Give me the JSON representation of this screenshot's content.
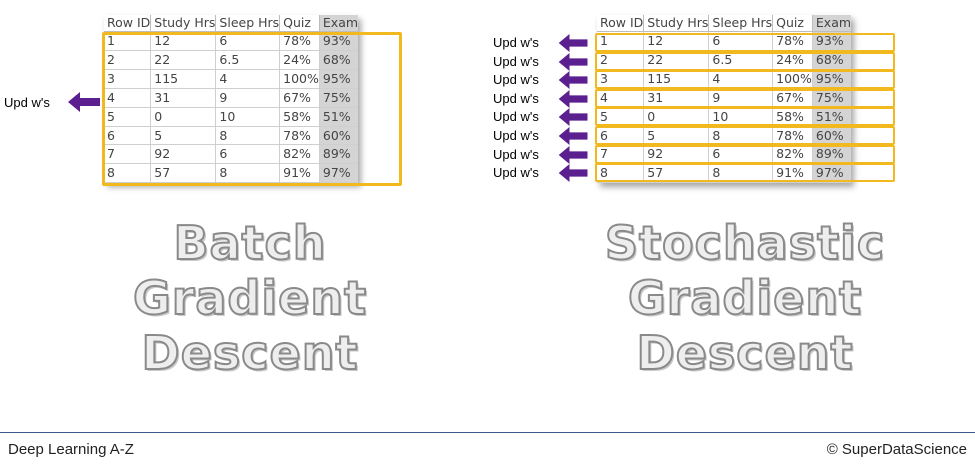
{
  "columns": [
    "Row ID",
    "Study Hrs",
    "Sleep Hrs",
    "Quiz",
    "Exam"
  ],
  "rows": [
    [
      "1",
      "12",
      "6",
      "78%",
      "93%"
    ],
    [
      "2",
      "22",
      "6.5",
      "24%",
      "68%"
    ],
    [
      "3",
      "115",
      "4",
      "100%",
      "95%"
    ],
    [
      "4",
      "31",
      "9",
      "67%",
      "75%"
    ],
    [
      "5",
      "0",
      "10",
      "58%",
      "51%"
    ],
    [
      "6",
      "5",
      "8",
      "78%",
      "60%"
    ],
    [
      "7",
      "92",
      "6",
      "82%",
      "89%"
    ],
    [
      "8",
      "57",
      "8",
      "91%",
      "97%"
    ]
  ],
  "update_label": "Upd w's",
  "left_title": [
    "Batch",
    "Gradient",
    "Descent"
  ],
  "right_title": [
    "Stochastic",
    "Gradient",
    "Descent"
  ],
  "footer": {
    "left": "Deep Learning A-Z",
    "right": "© SuperDataScience"
  },
  "colors": {
    "highlight": "#f2b91f",
    "arrow": "#5c1f8f",
    "footer_rule": "#3a5a8a"
  }
}
